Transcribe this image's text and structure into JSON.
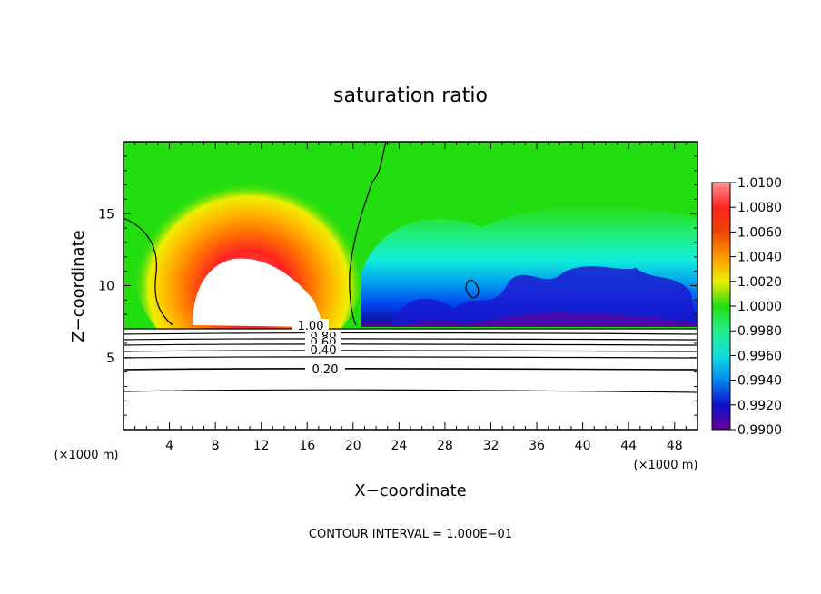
{
  "chart_data": {
    "type": "heatmap",
    "title": "saturation ratio",
    "xlabel": "X−coordinate",
    "ylabel": "Z−coordinate",
    "x_unit": "(×1000 m)",
    "x_unit_right": "(×1000 m)",
    "xlim": [
      0,
      50
    ],
    "ylim": [
      0,
      20
    ],
    "x_ticks": [
      "4",
      "8",
      "12",
      "16",
      "20",
      "24",
      "28",
      "32",
      "36",
      "40",
      "44",
      "48"
    ],
    "y_ticks": [
      "5",
      "10",
      "15"
    ],
    "colorbar": {
      "labels": [
        "1.0100",
        "1.0080",
        "1.0060",
        "1.0040",
        "1.0020",
        "1.0000",
        "0.9980",
        "0.9960",
        "0.9940",
        "0.9920",
        "0.9900"
      ],
      "range": [
        0.99,
        1.01
      ]
    },
    "contour_labels": [
      "1.00",
      "0.80",
      "0.60",
      "0.40",
      "0.20"
    ],
    "contour_interval_text": "CONTOUR INTERVAL = 1.000E−01",
    "colors": {
      "green": "#22dd10",
      "yellow": "#eeee00",
      "orange": "#ff8800",
      "red": "#ee1111",
      "pink": "#ff9090",
      "cyan": "#10eedd",
      "blue": "#0044ee",
      "navy": "#1010aa",
      "purple": "#660099"
    }
  }
}
